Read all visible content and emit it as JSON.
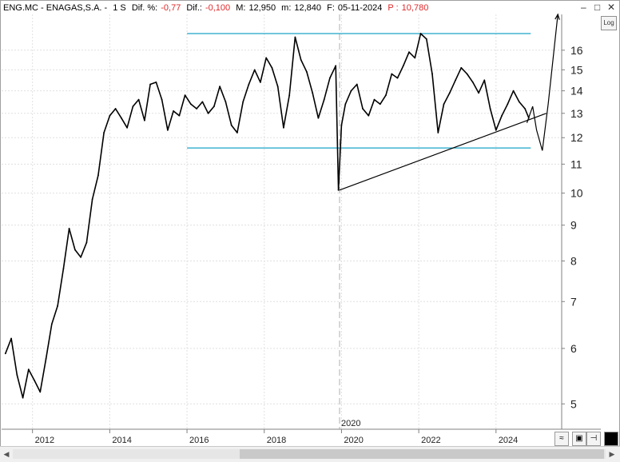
{
  "header": {
    "ticker": "ENG.MC - ENAGAS,S.A. -",
    "timeframe": "1 S",
    "dif_pct_label": "Dif. %:",
    "dif_pct_value": "-0,77",
    "dif_label": "Dif.:",
    "dif_value": "-0,100",
    "max_label": "M:",
    "max_value": "12,950",
    "min_label": "m:",
    "min_value": "12,840",
    "date_label": "F:",
    "date_value": "05-11-2024",
    "price_label": "P :",
    "price_value": "10,780"
  },
  "log_button": "Log",
  "window_buttons": {
    "minimize": "–",
    "maximize": "□",
    "close": "✕"
  },
  "tool_icons": {
    "indicator": "wave-icon",
    "save": "save-icon",
    "pin": "pin-icon",
    "color": "color-box-icon"
  },
  "chart_data": {
    "type": "line",
    "scale": "log",
    "ylim": [
      4.6,
      18
    ],
    "xlim": [
      2011.2,
      2025.7
    ],
    "y_ticks": [
      5,
      6,
      7,
      8,
      9,
      10,
      11,
      12,
      13,
      14,
      15,
      16
    ],
    "x_ticks": [
      "2012",
      "2014",
      "2016",
      "2018",
      "2020",
      "2022",
      "2024"
    ],
    "x_tick_values": [
      2012,
      2014,
      2016,
      2018,
      2020,
      2022,
      2024
    ],
    "marker_label": "2020",
    "marker_x": 2019.95,
    "series": [
      {
        "x": [
          2011.3,
          2011.45,
          2011.6,
          2011.75,
          2011.9,
          2012.05,
          2012.2,
          2012.35,
          2012.5,
          2012.65,
          2012.8,
          2012.95,
          2013.1,
          2013.25,
          2013.4,
          2013.55,
          2013.7,
          2013.85,
          2014.0,
          2014.15,
          2014.3,
          2014.45,
          2014.6,
          2014.75,
          2014.9,
          2015.05,
          2015.2,
          2015.35,
          2015.5,
          2015.65,
          2015.8,
          2015.95,
          2016.1,
          2016.25,
          2016.4,
          2016.55,
          2016.7,
          2016.85,
          2017.0,
          2017.15,
          2017.3,
          2017.45,
          2017.6,
          2017.75,
          2017.9,
          2018.05,
          2018.2,
          2018.35,
          2018.5,
          2018.65,
          2018.8,
          2018.95,
          2019.1,
          2019.25,
          2019.4,
          2019.55,
          2019.7,
          2019.85,
          2019.92,
          2020.0,
          2020.1,
          2020.25,
          2020.4,
          2020.55,
          2020.7,
          2020.85,
          2021.0,
          2021.15,
          2021.3,
          2021.45,
          2021.6,
          2021.75,
          2021.9,
          2022.05,
          2022.2,
          2022.35,
          2022.5,
          2022.65,
          2022.8,
          2022.95,
          2023.1,
          2023.25,
          2023.4,
          2023.55,
          2023.7,
          2023.85,
          2024.0,
          2024.15,
          2024.3,
          2024.45,
          2024.6,
          2024.75,
          2024.85
        ],
        "y": [
          5.9,
          6.2,
          5.5,
          5.1,
          5.6,
          5.4,
          5.2,
          5.8,
          6.5,
          6.9,
          7.8,
          8.9,
          8.3,
          8.1,
          8.5,
          9.8,
          10.6,
          12.2,
          12.9,
          13.2,
          12.8,
          12.4,
          13.3,
          13.6,
          12.7,
          14.3,
          14.4,
          13.6,
          12.3,
          13.1,
          12.9,
          13.8,
          13.4,
          13.2,
          13.5,
          13.0,
          13.3,
          14.2,
          13.5,
          12.5,
          12.2,
          13.5,
          14.3,
          15.0,
          14.4,
          15.6,
          15.1,
          14.2,
          12.4,
          13.8,
          16.7,
          15.5,
          14.9,
          13.9,
          12.8,
          13.6,
          14.6,
          15.2,
          10.1,
          12.5,
          13.4,
          14.0,
          14.3,
          13.2,
          12.9,
          13.6,
          13.4,
          13.8,
          14.8,
          14.6,
          15.2,
          15.9,
          15.6,
          16.9,
          16.6,
          14.8,
          12.2,
          13.4,
          13.9,
          14.5,
          15.1,
          14.8,
          14.4,
          13.9,
          14.5,
          13.2,
          12.3,
          12.9,
          13.4,
          14.0,
          13.5,
          13.2,
          12.8
        ]
      }
    ],
    "annotations": {
      "channel_top": {
        "x": [
          2016.0,
          2024.9
        ],
        "y": [
          16.9,
          16.9
        ]
      },
      "channel_bottom": {
        "x": [
          2016.0,
          2024.9
        ],
        "y": [
          11.6,
          11.6
        ]
      },
      "trendline": {
        "x": [
          2019.95,
          2025.3
        ],
        "y": [
          10.1,
          13.0
        ]
      },
      "projection": {
        "x": [
          2024.8,
          2024.95,
          2025.05,
          2025.2,
          2025.35,
          2025.6
        ],
        "y": [
          12.6,
          13.3,
          12.3,
          11.5,
          13.4,
          18.0
        ]
      }
    }
  }
}
